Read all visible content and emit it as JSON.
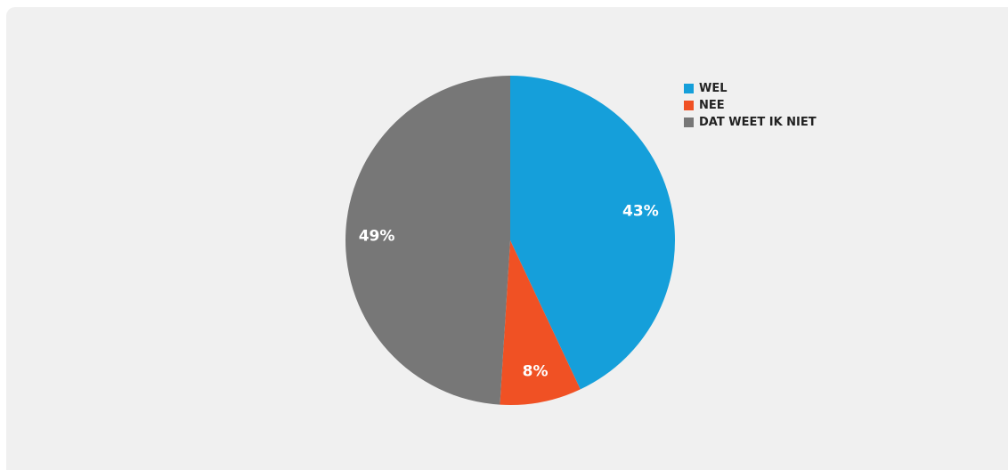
{
  "chart_data": {
    "type": "pie",
    "title": "",
    "categories": [
      "WEL",
      "NEE",
      "DAT WEET IK NIET"
    ],
    "values": [
      43,
      8,
      49
    ],
    "labels": [
      "43%",
      "8%",
      "49%"
    ],
    "colors": [
      "#159fda",
      "#f05124",
      "#777777"
    ],
    "legend_position": "top-right"
  }
}
